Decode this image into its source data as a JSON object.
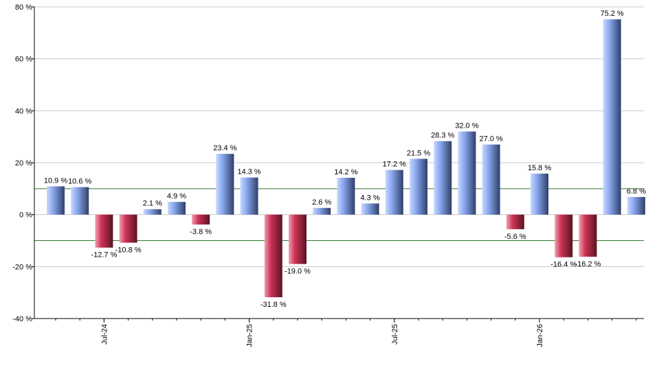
{
  "chart_data": {
    "type": "bar",
    "title": "",
    "xlabel": "",
    "ylabel": "",
    "ylim": [
      -40,
      80
    ],
    "y_ticks": [
      -40,
      -20,
      0,
      20,
      40,
      60,
      80
    ],
    "y_tick_labels": [
      "-40 %",
      "-20 %",
      "0 %",
      "20 %",
      "40 %",
      "60 %",
      "80 %"
    ],
    "grid": true,
    "reference_lines": [
      10,
      -10
    ],
    "positive_color": "#7a99dd",
    "negative_color": "#cc3355",
    "reference_line_color": "#2a7a2a",
    "values": [
      10.9,
      10.6,
      -12.7,
      -10.8,
      2.1,
      4.9,
      -3.8,
      23.4,
      14.3,
      -31.8,
      -19.0,
      2.6,
      14.2,
      4.3,
      17.2,
      21.5,
      28.3,
      32.0,
      27.0,
      -5.6,
      15.8,
      -16.4,
      -16.2,
      75.2,
      6.8
    ],
    "value_labels": [
      "10.9 %",
      "10.6 %",
      "-12.7 %",
      "-10.8 %",
      "2.1 %",
      "4.9 %",
      "-3.8 %",
      "23.4 %",
      "14.3 %",
      "-31.8 %",
      "-19.0 %",
      "2.6 %",
      "14.2 %",
      "4.3 %",
      "17.2 %",
      "21.5 %",
      "28.3 %",
      "32.0 %",
      "27.0 %",
      "-5.6 %",
      "15.8 %",
      "-16.4 %",
      "-16.2 %",
      "75.2 %",
      "6.8 %"
    ],
    "x_tick_labels": [
      {
        "label": "Jul-24",
        "index": 2
      },
      {
        "label": "Jan-25",
        "index": 8
      },
      {
        "label": "Jul-25",
        "index": 14
      },
      {
        "label": "Jan-26",
        "index": 20
      }
    ]
  }
}
